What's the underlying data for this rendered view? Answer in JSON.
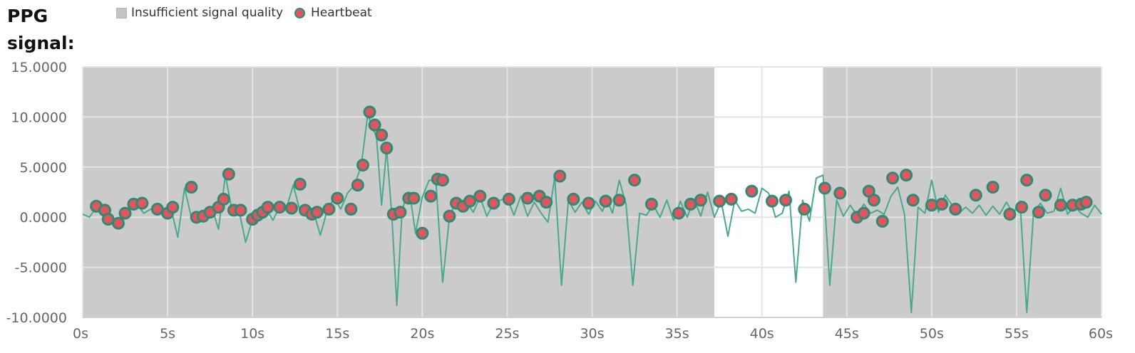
{
  "title": "PPG signal:",
  "legend": {
    "quality_label": "Insufficient signal quality",
    "heartbeat_label": "Heartbeat"
  },
  "colors": {
    "insufficient_bg": "#cbcbcb",
    "good_bg": "#ffffff",
    "grid": "#e4e4e4",
    "signal_line": "#4aa890",
    "marker_fill": "#e05560",
    "marker_stroke": "#2e8b72"
  },
  "chart_data": {
    "type": "line",
    "title": "PPG signal:",
    "xlabel": "",
    "ylabel": "",
    "xlim": [
      0,
      60
    ],
    "ylim": [
      -10,
      15
    ],
    "x_ticks": [
      0,
      5,
      10,
      15,
      20,
      25,
      30,
      35,
      40,
      45,
      50,
      55,
      60
    ],
    "x_tick_labels": [
      "0s",
      "5s",
      "10s",
      "15s",
      "20s",
      "25s",
      "30s",
      "35s",
      "40s",
      "45s",
      "50s",
      "55s",
      "60s"
    ],
    "y_ticks": [
      15,
      10,
      5,
      0,
      -5,
      -10
    ],
    "y_tick_labels": [
      "15.0000",
      "10.0000",
      "5.0000",
      "0.0000",
      "-5.0000",
      "-10.0000"
    ],
    "grid": true,
    "legend_position": "top",
    "good_quality_ranges": [
      [
        37.2,
        43.6
      ]
    ],
    "series": [
      {
        "name": "PPG signal",
        "x": [
          0,
          0.4,
          0.8,
          1.2,
          1.6,
          2.0,
          2.4,
          2.8,
          3.2,
          3.6,
          4.0,
          4.4,
          4.8,
          5.2,
          5.6,
          6.0,
          6.4,
          6.8,
          7.2,
          7.6,
          8.0,
          8.4,
          8.8,
          9.2,
          9.6,
          10.0,
          10.4,
          10.8,
          11.2,
          11.6,
          12.0,
          12.4,
          12.8,
          13.2,
          13.6,
          14.0,
          14.4,
          14.8,
          15.2,
          15.6,
          16.0,
          16.4,
          16.8,
          17.0,
          17.3,
          17.6,
          17.9,
          18.2,
          18.5,
          18.8,
          19.0,
          19.3,
          19.6,
          20.0,
          20.4,
          20.8,
          21.2,
          21.6,
          21.9,
          22.2,
          22.6,
          23.0,
          23.4,
          23.8,
          24.2,
          24.6,
          25.0,
          25.4,
          25.8,
          26.2,
          26.6,
          27.0,
          27.4,
          27.8,
          28.2,
          28.6,
          29.0,
          29.4,
          29.8,
          30.2,
          30.6,
          30.9,
          31.2,
          31.6,
          32.0,
          32.4,
          32.8,
          33.2,
          33.6,
          34.0,
          34.4,
          34.8,
          35.2,
          35.6,
          36.0,
          36.4,
          36.8,
          37.2,
          37.6,
          38.0,
          38.4,
          38.8,
          39.2,
          39.6,
          40.0,
          40.4,
          40.8,
          41.2,
          41.6,
          42.0,
          42.4,
          42.8,
          43.2,
          43.6,
          44.0,
          44.4,
          44.8,
          45.2,
          45.6,
          46.0,
          46.4,
          46.8,
          47.2,
          47.6,
          48.0,
          48.4,
          48.8,
          49.2,
          49.6,
          50.0,
          50.4,
          50.8,
          51.2,
          51.6,
          52.0,
          52.4,
          52.8,
          53.2,
          53.6,
          54.0,
          54.4,
          54.8,
          55.2,
          55.6,
          56.0,
          56.4,
          56.8,
          57.2,
          57.6,
          58.0,
          58.4,
          58.8,
          59.2,
          59.6,
          60.0
        ],
        "values": [
          0.3,
          0.0,
          1.0,
          0.6,
          -0.3,
          -0.6,
          0.3,
          1.2,
          1.3,
          0.4,
          0.8,
          0.6,
          0.3,
          0.9,
          -2.0,
          2.9,
          0.0,
          0.1,
          0.5,
          1.0,
          -1.2,
          4.2,
          0.6,
          0.7,
          -2.5,
          -0.2,
          0.2,
          0.9,
          -0.3,
          1.0,
          0.9,
          3.2,
          0.6,
          0.3,
          0.5,
          -1.8,
          0.7,
          1.9,
          0.8,
          2.4,
          3.2,
          5.1,
          10.4,
          9.1,
          8.1,
          1.2,
          6.8,
          0.3,
          -8.8,
          0.4,
          1.9,
          1.9,
          -1.6,
          2.0,
          3.7,
          3.6,
          -6.5,
          0.0,
          1.3,
          1.1,
          1.5,
          0.5,
          2.0,
          0.1,
          1.4,
          1.7,
          1.9,
          0.2,
          2.1,
          0.1,
          1.5,
          0.4,
          -0.5,
          4.0,
          -6.8,
          1.7,
          0.5,
          1.5,
          0.3,
          1.6,
          0.6,
          1.7,
          0.4,
          3.7,
          1.3,
          -6.8,
          0.4,
          0.2,
          1.2,
          0.0,
          1.7,
          -0.3,
          1.6,
          0.0,
          1.8,
          0.1,
          2.5,
          0.0,
          1.6,
          -1.9,
          1.7,
          0.6,
          0.8,
          0.4,
          2.9,
          2.4,
          0.0,
          0.4,
          2.6,
          -6.5,
          1.7,
          -0.4,
          3.9,
          4.2,
          -6.8,
          1.7,
          0.1,
          1.2,
          0.2,
          1.3,
          0.4,
          0.7,
          0.3,
          2.1,
          3.0,
          0.3,
          -9.5,
          1.0,
          0.4,
          3.7,
          0.5,
          2.2,
          1.2,
          0.4,
          1.0,
          0.4,
          1.2,
          0.2,
          1.1,
          0.3,
          1.5,
          0.4,
          1.6,
          -9.5,
          0.4,
          1.4,
          0.4,
          0.6,
          2.9,
          0.3,
          1.1,
          0.4,
          0.0,
          1.2,
          0.3
        ]
      },
      {
        "name": "Heartbeat",
        "x": [
          0.8,
          1.3,
          1.5,
          2.1,
          2.5,
          3.0,
          3.5,
          4.4,
          5.0,
          5.3,
          6.4,
          6.7,
          7.1,
          7.5,
          8.0,
          8.3,
          8.6,
          8.9,
          9.3,
          10.0,
          10.3,
          10.6,
          10.9,
          11.6,
          12.3,
          12.8,
          13.1,
          13.5,
          13.8,
          14.5,
          15.0,
          15.8,
          16.2,
          16.5,
          16.9,
          17.2,
          17.6,
          17.9,
          18.3,
          18.7,
          19.2,
          19.5,
          20.0,
          20.5,
          20.9,
          21.2,
          21.6,
          22.0,
          22.4,
          22.8,
          23.4,
          24.2,
          25.1,
          26.2,
          26.9,
          27.3,
          28.1,
          28.9,
          29.8,
          30.8,
          31.6,
          32.5,
          33.5,
          35.1,
          35.8,
          36.4,
          37.5,
          38.2,
          39.4,
          40.6,
          41.4,
          42.5,
          43.7,
          44.6,
          45.6,
          46.0,
          46.3,
          46.6,
          47.1,
          47.7,
          48.5,
          48.9,
          50.0,
          50.6,
          51.4,
          52.6,
          53.6,
          54.6,
          55.3,
          55.6,
          56.3,
          56.7,
          57.6,
          58.3,
          58.8,
          59.1
        ],
        "values": [
          1.1,
          0.7,
          -0.2,
          -0.6,
          0.4,
          1.3,
          1.4,
          0.8,
          0.4,
          1.0,
          3.0,
          0.0,
          0.1,
          0.5,
          1.0,
          1.8,
          4.3,
          0.7,
          0.7,
          -0.2,
          0.2,
          0.5,
          1.0,
          1.0,
          0.9,
          3.3,
          0.7,
          0.3,
          0.5,
          0.8,
          1.9,
          0.8,
          3.2,
          5.2,
          10.5,
          9.2,
          8.2,
          6.9,
          0.3,
          0.5,
          1.9,
          1.9,
          -1.6,
          2.1,
          3.8,
          3.7,
          0.1,
          1.4,
          1.1,
          1.6,
          2.1,
          1.4,
          1.8,
          1.9,
          2.1,
          1.5,
          4.1,
          1.8,
          1.4,
          1.6,
          1.7,
          3.7,
          1.3,
          0.4,
          1.3,
          1.7,
          1.6,
          1.8,
          2.6,
          1.6,
          1.7,
          0.8,
          2.9,
          2.4,
          0.0,
          0.4,
          2.6,
          1.7,
          -0.4,
          3.9,
          4.2,
          1.7,
          1.2,
          1.3,
          0.8,
          2.2,
          3.0,
          0.3,
          1.0,
          3.7,
          0.5,
          2.2,
          1.2,
          1.2,
          1.3,
          1.5
        ]
      }
    ]
  }
}
